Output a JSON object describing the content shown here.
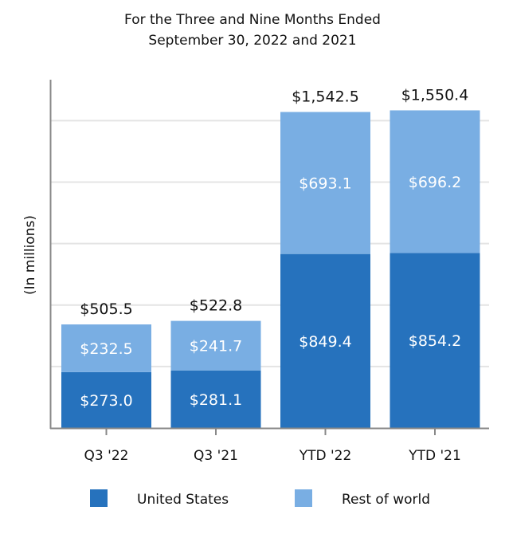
{
  "chart_data": {
    "type": "bar",
    "stacked": true,
    "title": "For the Three and Nine Months Ended",
    "subtitle": "September 30, 2022 and 2021",
    "xlabel": "",
    "ylabel": "(In millions)",
    "ylim": [
      0,
      1700
    ],
    "grid": true,
    "gridlines": [
      300,
      600,
      900,
      1200,
      1500
    ],
    "legend_position": "bottom",
    "categories": [
      "Q3 '22",
      "Q3 '21",
      "YTD '22",
      "YTD '21"
    ],
    "series": [
      {
        "name": "United States",
        "color": "#2672bd",
        "values": [
          273.0,
          281.1,
          849.4,
          854.2
        ],
        "labels": [
          "$273.0",
          "$281.1",
          "$849.4",
          "$854.2"
        ]
      },
      {
        "name": "Rest of world",
        "color": "#79aee3",
        "values": [
          232.5,
          241.7,
          693.1,
          696.2
        ],
        "labels": [
          "$232.5",
          "$241.7",
          "$693.1",
          "$696.2"
        ]
      }
    ],
    "totals": [
      505.5,
      522.8,
      1542.5,
      1550.4
    ],
    "total_labels": [
      "$505.5",
      "$522.8",
      "$1,542.5",
      "$1,550.4"
    ]
  }
}
